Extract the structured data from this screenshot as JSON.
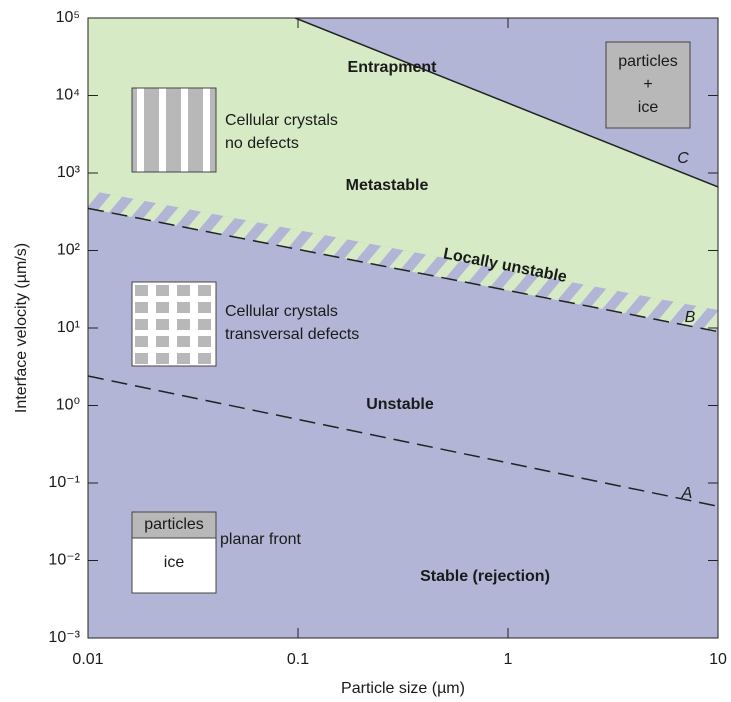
{
  "chart_data": {
    "type": "line",
    "xlabel": "Particle size (µm)",
    "ylabel": "Interface velocity (µm/s)",
    "xscale": "log",
    "yscale": "log",
    "xlim": [
      0.01,
      10
    ],
    "ylim": [
      0.001,
      100000
    ],
    "xticks": [
      0.01,
      0.1,
      1,
      10
    ],
    "yticks": [
      {
        "value": 0.001,
        "label": "10⁻³"
      },
      {
        "value": 0.01,
        "label": "10⁻²"
      },
      {
        "value": 0.1,
        "label": "10⁻¹"
      },
      {
        "value": 1,
        "label": "10⁰"
      },
      {
        "value": 10,
        "label": "10¹"
      },
      {
        "value": 100,
        "label": "10²"
      },
      {
        "value": 1000,
        "label": "10³"
      },
      {
        "value": 10000,
        "label": "10⁴"
      },
      {
        "value": 100000,
        "label": "10⁵"
      }
    ],
    "background": "#b3b5d6",
    "series": [
      {
        "name": "A",
        "color": "#222222",
        "linestyle": "dashed",
        "x": [
          0.01,
          10
        ],
        "values": [
          2.4,
          0.05
        ]
      },
      {
        "name": "B",
        "color": "#222222",
        "linestyle": "dashed",
        "x": [
          0.01,
          10
        ],
        "values": [
          350,
          9
        ]
      },
      {
        "name": "C",
        "color": "#222222",
        "linestyle": "solid",
        "x": [
          0.097,
          10
        ],
        "values": [
          100000,
          660
        ]
      }
    ],
    "regions": [
      {
        "label": "Entrapment"
      },
      {
        "label": "Metastable",
        "color": "#d6ebc5"
      },
      {
        "label": "Locally unstable",
        "x": [
          0.01,
          10
        ],
        "values": [
          600,
          17
        ]
      },
      {
        "label": "Unstable"
      },
      {
        "label": "Stable (rejection)"
      }
    ],
    "insets": [
      {
        "lines": [
          "particles",
          "+",
          "ice"
        ]
      },
      {
        "lines": [
          "Cellular crystals",
          "no defects"
        ]
      },
      {
        "lines": [
          "Cellular crystals",
          "transversal defects"
        ]
      },
      {
        "lines": [
          "particles",
          "ice",
          "planar front"
        ]
      }
    ]
  }
}
